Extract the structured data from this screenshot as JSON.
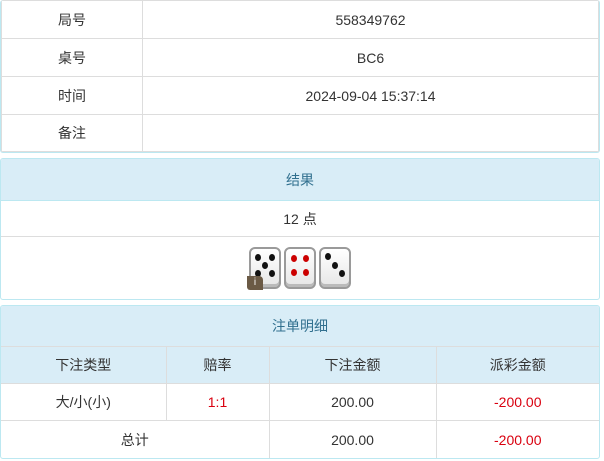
{
  "info": {
    "rows": [
      {
        "label": "局号",
        "value": "558349762"
      },
      {
        "label": "桌号",
        "value": "BC6"
      },
      {
        "label": "时间",
        "value": "2024-09-04 15:37:14"
      },
      {
        "label": "备注",
        "value": ""
      }
    ]
  },
  "result": {
    "title": "结果",
    "points": "12 点",
    "dice": [
      5,
      4,
      3
    ],
    "info_icon": "i"
  },
  "bets": {
    "title": "注单明细",
    "columns": [
      "下注类型",
      "赔率",
      "下注金额",
      "派彩金额"
    ],
    "rows": [
      {
        "type": "大/小(小)",
        "odds": "1:1",
        "amount": "200.00",
        "payout": "-200.00"
      }
    ],
    "total": {
      "label": "总计",
      "amount": "200.00",
      "payout": "-200.00"
    }
  },
  "colors": {
    "header_bg": "#d9edf7",
    "header_text": "#31708f",
    "negative": "#d9000f"
  }
}
